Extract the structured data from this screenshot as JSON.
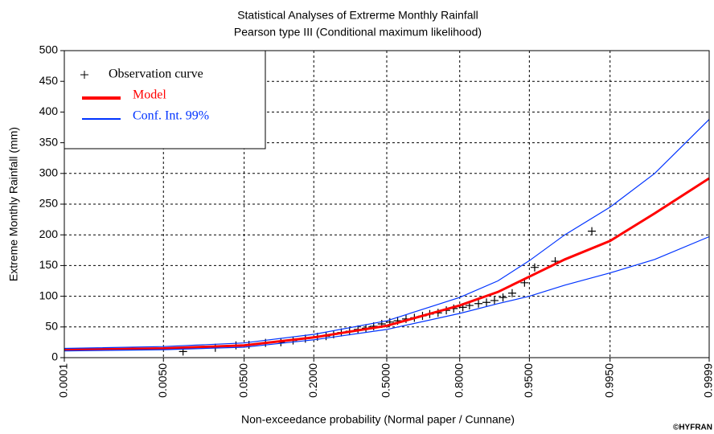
{
  "chart_data": {
    "type": "line",
    "xscale": "probit",
    "title": "Statistical Analyses of Extrerme Monthly Rainfall",
    "subtitle": "Pearson type III (Conditional maximum likelihood)",
    "xlabel": "Non-exceedance probability (Normal paper / Cunnane)",
    "ylabel": "Extreme Monthly Rainfall (mm)",
    "credit": "©HYFRAN",
    "xlim": [
      0.0001,
      0.9999
    ],
    "xticks": [
      0.0001,
      {
        "value": 0.005,
        "label": "0.0050"
      },
      {
        "value": 0.05,
        "label": "0.0500"
      },
      {
        "value": 0.2,
        "label": "0.2000"
      },
      {
        "value": 0.5,
        "label": "0.5000"
      },
      {
        "value": 0.8,
        "label": "0.8000"
      },
      {
        "value": 0.95,
        "label": "0.9500"
      },
      {
        "value": 0.995,
        "label": "0.9950"
      },
      0.9999
    ],
    "ylim": [
      0,
      500
    ],
    "yticks": [
      0,
      50,
      100,
      150,
      200,
      250,
      300,
      350,
      400,
      450,
      500
    ],
    "grid": true,
    "legend": "upper left",
    "series": [
      {
        "name": "Observation curve",
        "color": "#000000",
        "marker": "+",
        "x": [
          0.0094,
          0.024,
          0.041,
          0.056,
          0.081,
          0.111,
          0.14,
          0.174,
          0.212,
          0.242,
          0.27,
          0.3,
          0.334,
          0.37,
          0.405,
          0.44,
          0.477,
          0.514,
          0.55,
          0.588,
          0.625,
          0.66,
          0.69,
          0.723,
          0.754,
          0.78,
          0.81,
          0.83,
          0.855,
          0.875,
          0.893,
          0.91,
          0.926,
          0.944,
          0.956,
          0.974,
          0.991
        ],
        "values": [
          10,
          16,
          20,
          21,
          24,
          25,
          28,
          31,
          34,
          35,
          38,
          41,
          43,
          46,
          48,
          51,
          55,
          58,
          60,
          63,
          65,
          68,
          71,
          73,
          77,
          80,
          82,
          85,
          88,
          90,
          93,
          98,
          105,
          122,
          147,
          157,
          206
        ]
      },
      {
        "name": "Model",
        "color": "#ff0000",
        "x": [
          0.0001,
          0.005,
          0.05,
          0.2,
          0.5,
          0.8,
          0.9,
          0.95,
          0.98,
          0.995,
          0.999,
          0.9999
        ],
        "values": [
          13,
          15,
          20,
          33,
          52,
          85,
          107,
          132,
          160,
          190,
          235,
          292
        ]
      },
      {
        "name": "Conf. Int. 99%",
        "color": "#0033ff",
        "x": [
          0.0001,
          0.005,
          0.05,
          0.2,
          0.5,
          0.8,
          0.9,
          0.95,
          0.98,
          0.995,
          0.999,
          0.9999
        ],
        "lower": [
          11,
          13,
          17,
          29,
          46,
          72,
          88,
          100,
          118,
          138,
          160,
          197
        ],
        "upper": [
          15,
          18,
          24,
          38,
          60,
          98,
          125,
          158,
          200,
          245,
          300,
          388
        ]
      }
    ]
  }
}
